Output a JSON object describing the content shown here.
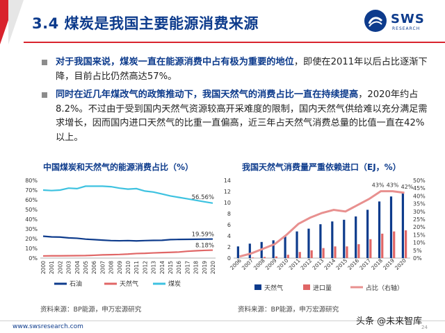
{
  "header": {
    "title": "3.4 煤炭是我国主要能源消费来源",
    "logo_text": "SWS",
    "logo_sub": "RESEARCH"
  },
  "bullets": [
    {
      "bold": "对于我国来说，煤炭一直在能源消费中占有极为重要的地位",
      "rest": "，即使在2011年以后占比逐渐下降，目前占比仍然高达57%。"
    },
    {
      "bold": "同时在近几年煤改气的政策推动下，我国天然气的消费占比一直在持续提高",
      "rest": "，2020年约占8.2%。不过由于受到国内天然气资源较高开采难度的限制，国内天然气供给难以充分满足需求增长，因而国内进口天然气的比重一直偏高，近三年占天然气消费总量的比值一直在42%以上。"
    }
  ],
  "chart1": {
    "title": "中国煤炭和天然气的能源消费占比（%）",
    "source": "资料来源：BP能源，申万宏源研究",
    "chart_data": {
      "type": "line",
      "x": [
        "2000",
        "2001",
        "2002",
        "2003",
        "2004",
        "2005",
        "2006",
        "2007",
        "2008",
        "2009",
        "2010",
        "2011",
        "2012",
        "2013",
        "2014",
        "2015",
        "2016",
        "2017",
        "2018",
        "2019",
        "2020"
      ],
      "ylim": [
        0,
        80
      ],
      "yticks": [
        "0%",
        "10%",
        "20%",
        "30%",
        "40%",
        "50%",
        "60%",
        "70%",
        "80%"
      ],
      "series": [
        {
          "name": "石油",
          "color": "#0d3b8c",
          "values": [
            22.5,
            21.8,
            21.6,
            20.8,
            20.4,
            19.5,
            19.0,
            18.5,
            18.0,
            17.8,
            18.0,
            17.7,
            18.0,
            18.2,
            18.3,
            19.0,
            19.2,
            19.3,
            19.4,
            19.5,
            19.59
          ]
        },
        {
          "name": "天然气",
          "color": "#e06666",
          "values": [
            2.2,
            2.3,
            2.3,
            2.4,
            2.5,
            2.6,
            2.9,
            3.3,
            3.5,
            3.7,
            4.1,
            4.7,
            4.9,
            5.3,
            5.6,
            5.9,
            6.2,
            7.0,
            7.5,
            7.9,
            8.18
          ]
        },
        {
          "name": "煤炭",
          "color": "#3dc2e0",
          "values": [
            70,
            69.5,
            70,
            72,
            71.5,
            74,
            74,
            74,
            73.5,
            72,
            71,
            71.5,
            69,
            68,
            66,
            64,
            62.5,
            61,
            59.5,
            58,
            56.56
          ]
        }
      ],
      "end_labels": [
        "19.59%",
        "8.18%",
        "56.56%"
      ]
    }
  },
  "chart2": {
    "title": "我国天然气消费量严重依赖进口（EJ，%）",
    "source": "资料来源：BP能源，申万宏源研究",
    "chart_data": {
      "type": "bar",
      "categories": [
        "2006",
        "2007",
        "2008",
        "2009",
        "2010",
        "2011",
        "2012",
        "2013",
        "2014",
        "2015",
        "2016",
        "2017",
        "2018",
        "2019",
        "2020"
      ],
      "ylim": [
        0,
        14
      ],
      "yticks": [
        "0",
        "2",
        "4",
        "6",
        "8",
        "10",
        "12",
        "14"
      ],
      "y2lim": [
        0,
        50
      ],
      "y2ticks": [
        "0%",
        "5%",
        "10%",
        "15%",
        "20%",
        "25%",
        "30%",
        "35%",
        "40%",
        "45%",
        "50%"
      ],
      "series": [
        {
          "name": "天然气",
          "color": "#0d3b8c",
          "axis": "left",
          "values": [
            2.1,
            2.6,
            2.9,
            3.2,
            3.9,
            4.8,
            5.3,
            6.1,
            6.6,
            6.9,
            7.5,
            8.7,
            10.2,
            11.1,
            11.7
          ]
        },
        {
          "name": "进口量",
          "color": "#e06666",
          "axis": "left",
          "values": [
            0.0,
            0.1,
            0.2,
            0.3,
            0.6,
            1.1,
            1.4,
            1.8,
            2.1,
            2.1,
            2.5,
            3.4,
            4.4,
            4.8,
            5.0
          ]
        },
        {
          "name": "占比（右轴）",
          "color": "#e06666",
          "axis": "right",
          "values": [
            1,
            3,
            6,
            9,
            15,
            22,
            26,
            29,
            31,
            30,
            34,
            38,
            43,
            43,
            42
          ]
        }
      ],
      "point_labels": [
        "43%",
        "43%",
        "42%"
      ]
    }
  },
  "footer": {
    "url": "www.swsresearch.com",
    "watermark": "头条 @未来智库",
    "page": "24"
  }
}
